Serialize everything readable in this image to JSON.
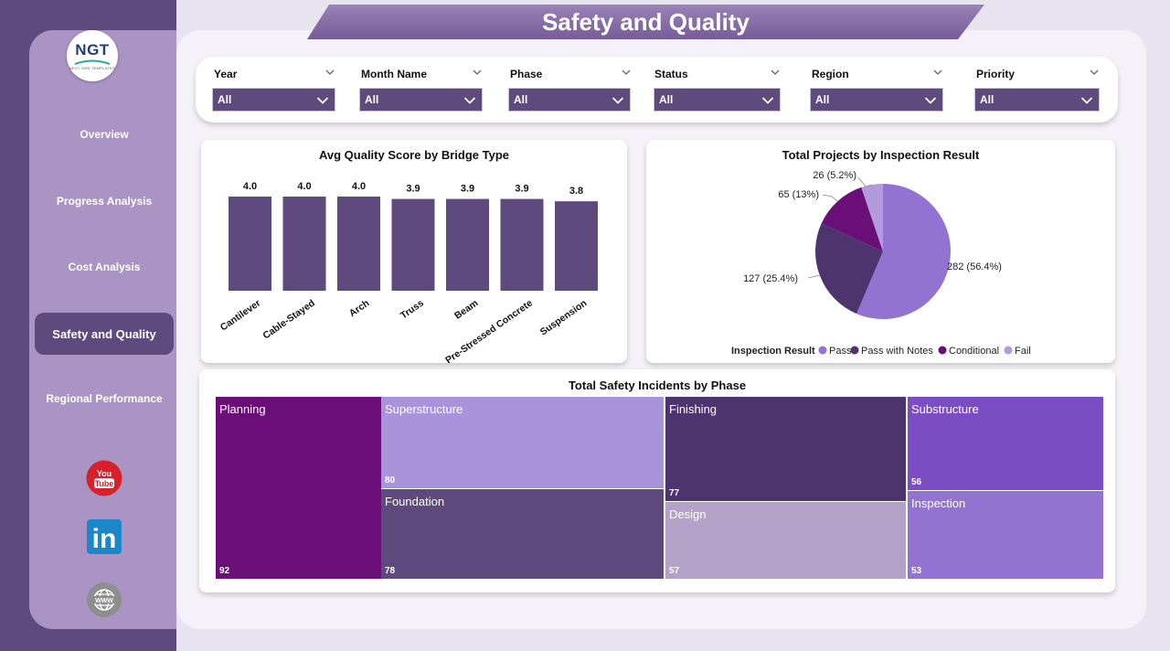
{
  "header": {
    "title": "Safety and Quality"
  },
  "logo": {
    "text": "NGT",
    "subtext": "NEXT GEN TEMPLATES"
  },
  "sidebar": {
    "items": [
      {
        "label": "Overview",
        "active": false
      },
      {
        "label": "Progress Analysis",
        "active": false
      },
      {
        "label": "Cost Analysis",
        "active": false
      },
      {
        "label": "Safety and Quality",
        "active": true
      },
      {
        "label": "Regional Performance",
        "active": false
      }
    ],
    "social": [
      {
        "name": "youtube-icon",
        "text_top": "You",
        "text_bottom": "Tube"
      },
      {
        "name": "linkedin-icon",
        "text": "in"
      },
      {
        "name": "website-globe-icon"
      }
    ]
  },
  "filters": [
    {
      "label": "Year",
      "value": "All"
    },
    {
      "label": "Month Name",
      "value": "All"
    },
    {
      "label": "Phase",
      "value": "All"
    },
    {
      "label": "Status",
      "value": "All"
    },
    {
      "label": "Region",
      "value": "All"
    },
    {
      "label": "Priority",
      "value": "All"
    }
  ],
  "colors": {
    "primary": "#5e4a7c",
    "sidebar": "#a994c4",
    "pass": "#9373d1",
    "pass_with_notes": "#4e346f",
    "conditional": "#6a0f78",
    "fail": "#b29bdc"
  },
  "chart_data": [
    {
      "type": "bar",
      "title": "Avg Quality Score by Bridge Type",
      "categories": [
        "Cantilever",
        "Cable-Stayed",
        "Arch",
        "Truss",
        "Beam",
        "Pre-Stressed Concrete",
        "Suspension"
      ],
      "values": [
        4.0,
        4.0,
        4.0,
        3.9,
        3.9,
        3.9,
        3.8
      ],
      "value_labels": [
        "4.0",
        "4.0",
        "4.0",
        "3.9",
        "3.9",
        "3.9",
        "3.8"
      ],
      "ylim": [
        0,
        4.0
      ],
      "grid": false,
      "color": "#5e4a7c"
    },
    {
      "type": "pie",
      "title": "Total Projects by Inspection Result",
      "legend_title": "Inspection Result",
      "legend_position": "bottom",
      "slices": [
        {
          "name": "Pass",
          "value": 282,
          "label": "282 (56.4%)",
          "color": "#9373d1"
        },
        {
          "name": "Pass with Notes",
          "value": 127,
          "label": "127 (25.4%)",
          "color": "#4e346f"
        },
        {
          "name": "Conditional",
          "value": 65,
          "label": "65 (13%)",
          "color": "#6a0f78"
        },
        {
          "name": "Fail",
          "value": 26,
          "label": "26 (5.2%)",
          "color": "#b29bdc"
        }
      ]
    },
    {
      "type": "treemap",
      "title": "Total Safety Incidents by Phase",
      "items": [
        {
          "name": "Planning",
          "value": 92,
          "color": "#6a0f78"
        },
        {
          "name": "Superstructure",
          "value": 80,
          "color": "#a994dc"
        },
        {
          "name": "Foundation",
          "value": 78,
          "color": "#5e4a7c"
        },
        {
          "name": "Finishing",
          "value": 77,
          "color": "#4e346f"
        },
        {
          "name": "Design",
          "value": 57,
          "color": "#b3a1c8"
        },
        {
          "name": "Substructure",
          "value": 56,
          "color": "#7a4ec2"
        },
        {
          "name": "Inspection",
          "value": 53,
          "color": "#9373d1"
        }
      ]
    }
  ]
}
